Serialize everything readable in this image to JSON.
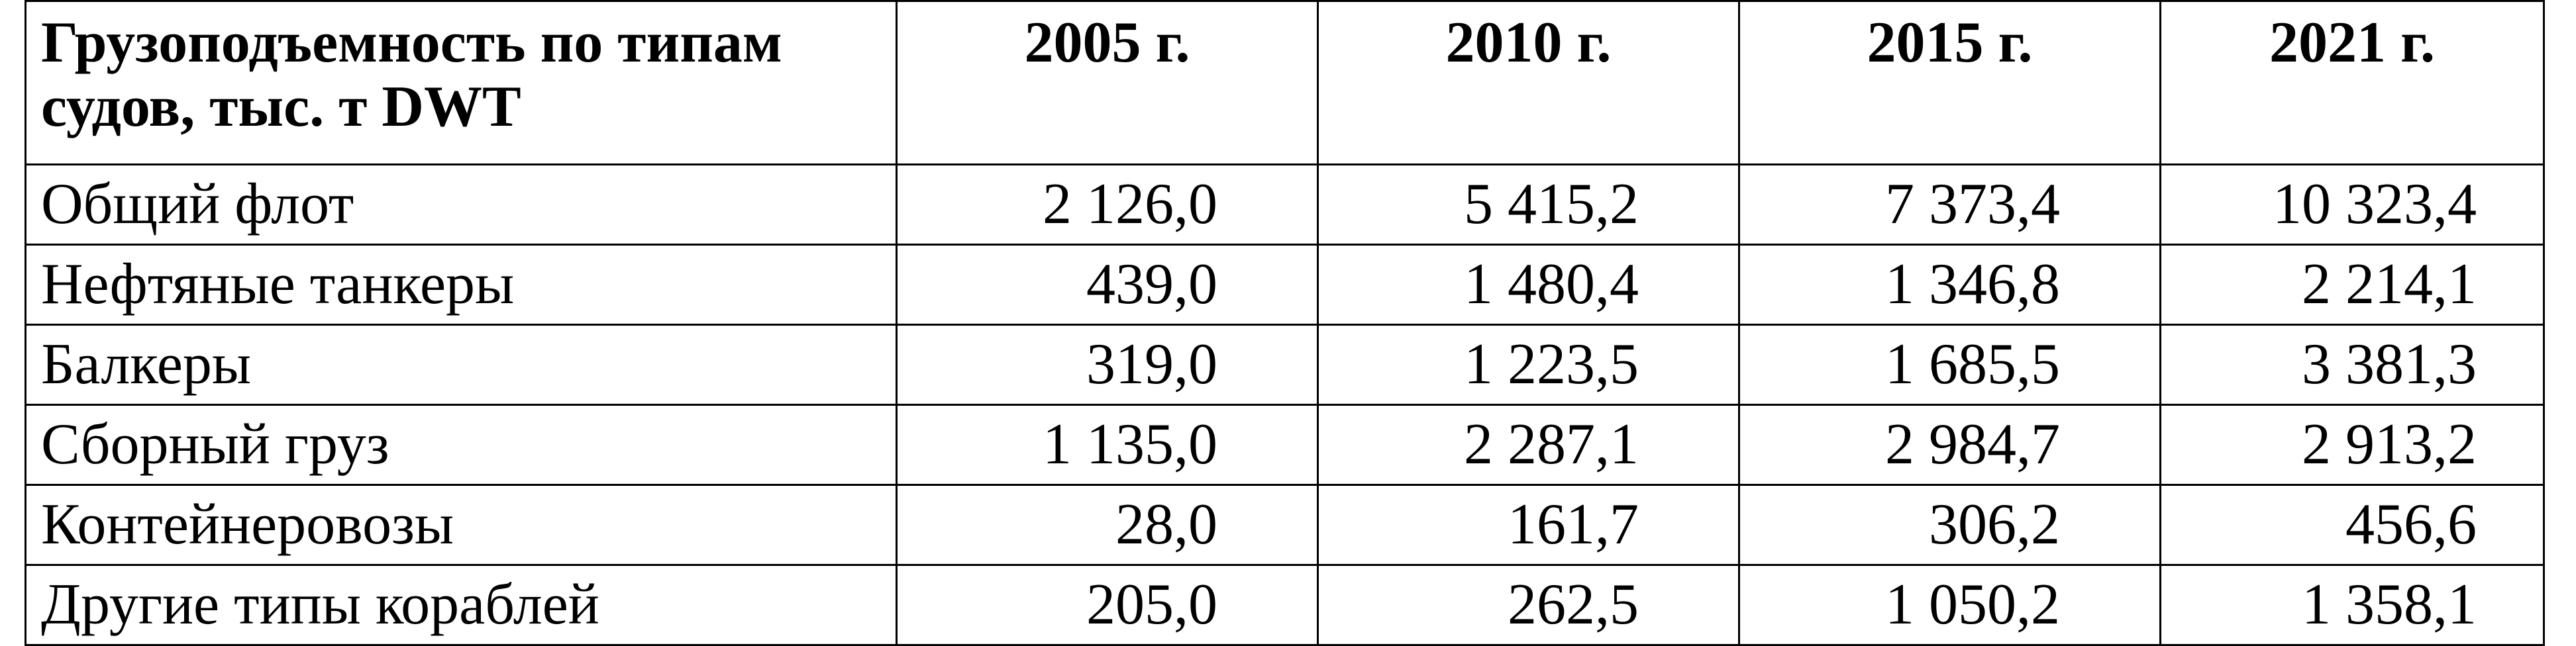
{
  "table": {
    "header": [
      "Грузоподъемность по типам судов, тыс. т DWT",
      "2005 г.",
      "2010 г.",
      "2015 г.",
      "2021 г."
    ],
    "rows": [
      [
        "Общий флот",
        "2 126,0",
        "5 415,2",
        "7 373,4",
        "10 323,4"
      ],
      [
        "Нефтяные танкеры",
        "439,0",
        "1 480,4",
        "1 346,8",
        "2 214,1"
      ],
      [
        "Балкеры",
        "319,0",
        "1 223,5",
        "1 685,5",
        "3 381,3"
      ],
      [
        "Сборный груз",
        "1 135,0",
        "2 287,1",
        "2 984,7",
        "2 913,2"
      ],
      [
        "Контейнеровозы",
        "28,0",
        "161,7",
        "306,2",
        "456,6"
      ],
      [
        "Другие типы кораблей",
        "205,0",
        "262,5",
        "1 050,2",
        "1 358,1"
      ]
    ]
  }
}
